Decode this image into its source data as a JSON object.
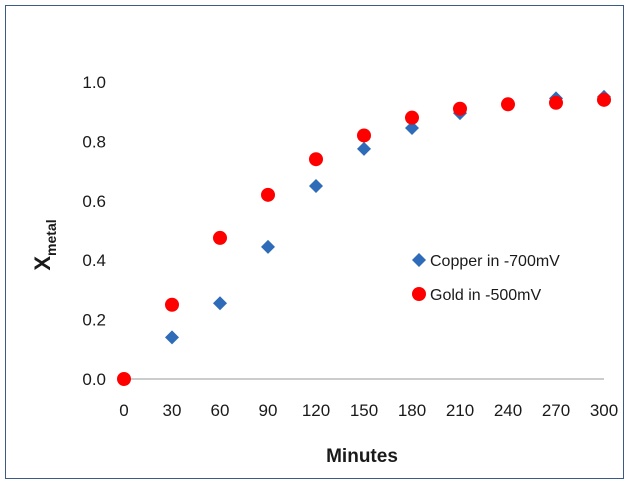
{
  "chart_data": {
    "type": "scatter",
    "title": "",
    "xlabel": "Minutes",
    "ylabel_main": "X",
    "ylabel_sub": "metal",
    "xlim": [
      0,
      300
    ],
    "ylim": [
      0,
      1.0
    ],
    "x_ticks": [
      "0",
      "30",
      "60",
      "90",
      "120",
      "150",
      "180",
      "210",
      "240",
      "270",
      "300"
    ],
    "y_ticks": [
      "0.0",
      "0.2",
      "0.4",
      "0.6",
      "0.8",
      "1.0"
    ],
    "grid": false,
    "legend_position": "right-middle",
    "series": [
      {
        "name": "Copper in -700mV",
        "marker": "diamond",
        "color": "#2e6bb8",
        "x": [
          0,
          30,
          60,
          90,
          120,
          150,
          180,
          210,
          240,
          270,
          300
        ],
        "y": [
          0.0,
          0.14,
          0.255,
          0.445,
          0.65,
          0.775,
          0.845,
          0.895,
          0.925,
          0.945,
          0.95
        ]
      },
      {
        "name": "Gold in -500mV",
        "marker": "circle",
        "color": "#ff0000",
        "x": [
          0,
          30,
          60,
          90,
          120,
          150,
          180,
          210,
          240,
          270,
          300
        ],
        "y": [
          0.0,
          0.25,
          0.475,
          0.62,
          0.74,
          0.82,
          0.88,
          0.91,
          0.925,
          0.93,
          0.94
        ]
      }
    ]
  }
}
